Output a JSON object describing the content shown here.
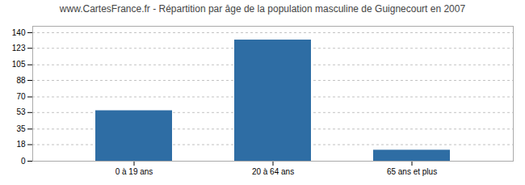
{
  "chart_data": {
    "type": "bar",
    "title": "www.CartesFrance.fr - Répartition par âge de la population masculine de Guignecourt en 2007",
    "categories": [
      "0 à 19 ans",
      "20 à 64 ans",
      "65 ans et plus"
    ],
    "values": [
      55,
      132,
      12
    ],
    "color": "#2e6da4",
    "ylim": [
      0,
      147
    ],
    "yticks": [
      0,
      18,
      35,
      53,
      70,
      88,
      105,
      123,
      140
    ],
    "grid": true
  }
}
